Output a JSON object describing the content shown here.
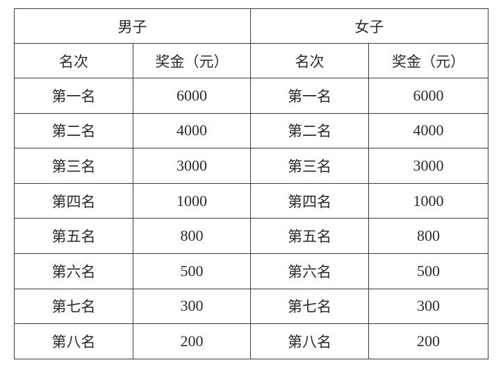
{
  "groups": [
    "男子",
    "女子"
  ],
  "columns": [
    "名次",
    "奖金（元）"
  ],
  "rows": [
    {
      "rank": "第一名",
      "men": "6000",
      "women_rank": "第一名",
      "women": "6000"
    },
    {
      "rank": "第二名",
      "men": "4000",
      "women_rank": "第二名",
      "women": "4000"
    },
    {
      "rank": "第三名",
      "men": "3000",
      "women_rank": "第三名",
      "women": "3000"
    },
    {
      "rank": "第四名",
      "men": "1000",
      "women_rank": "第四名",
      "women": "1000"
    },
    {
      "rank": "第五名",
      "men": "800",
      "women_rank": "第五名",
      "women": "800"
    },
    {
      "rank": "第六名",
      "men": "500",
      "women_rank": "第六名",
      "women": "500"
    },
    {
      "rank": "第七名",
      "men": "300",
      "women_rank": "第七名",
      "women": "300"
    },
    {
      "rank": "第八名",
      "men": "200",
      "women_rank": "第八名",
      "women": "200"
    }
  ]
}
